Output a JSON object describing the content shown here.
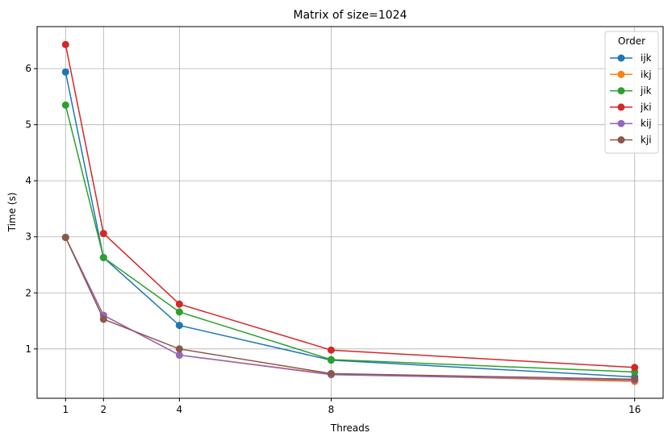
{
  "chart_data": {
    "type": "line",
    "title": "Matrix of size=1024",
    "xlabel": "Threads",
    "ylabel": "Time (s)",
    "x": [
      1,
      2,
      4,
      8,
      16
    ],
    "xticks": [
      "1",
      "2",
      "4",
      "8",
      "16"
    ],
    "yticks": [
      "1",
      "2",
      "3",
      "4",
      "5",
      "6"
    ],
    "xlim": [
      0.25,
      16.75
    ],
    "ylim": [
      0.12,
      6.75
    ],
    "grid": true,
    "legend": {
      "title": "Order",
      "placement": "top-right"
    },
    "series": [
      {
        "name": "ijk",
        "color": "#1f77b4",
        "values": [
          5.94,
          2.63,
          1.42,
          0.8,
          0.5
        ]
      },
      {
        "name": "ikj",
        "color": "#ff7f0e",
        "values": [
          2.99,
          1.6,
          0.89,
          0.55,
          0.42
        ]
      },
      {
        "name": "jik",
        "color": "#2ca02c",
        "values": [
          5.35,
          2.63,
          1.66,
          0.81,
          0.59
        ]
      },
      {
        "name": "jki",
        "color": "#d62728",
        "values": [
          6.43,
          3.06,
          1.8,
          0.98,
          0.67
        ]
      },
      {
        "name": "kij",
        "color": "#9467bd",
        "values": [
          2.99,
          1.6,
          0.89,
          0.54,
          0.44
        ]
      },
      {
        "name": "kji",
        "color": "#8c564b",
        "values": [
          2.99,
          1.53,
          1.0,
          0.56,
          0.46
        ]
      }
    ]
  }
}
